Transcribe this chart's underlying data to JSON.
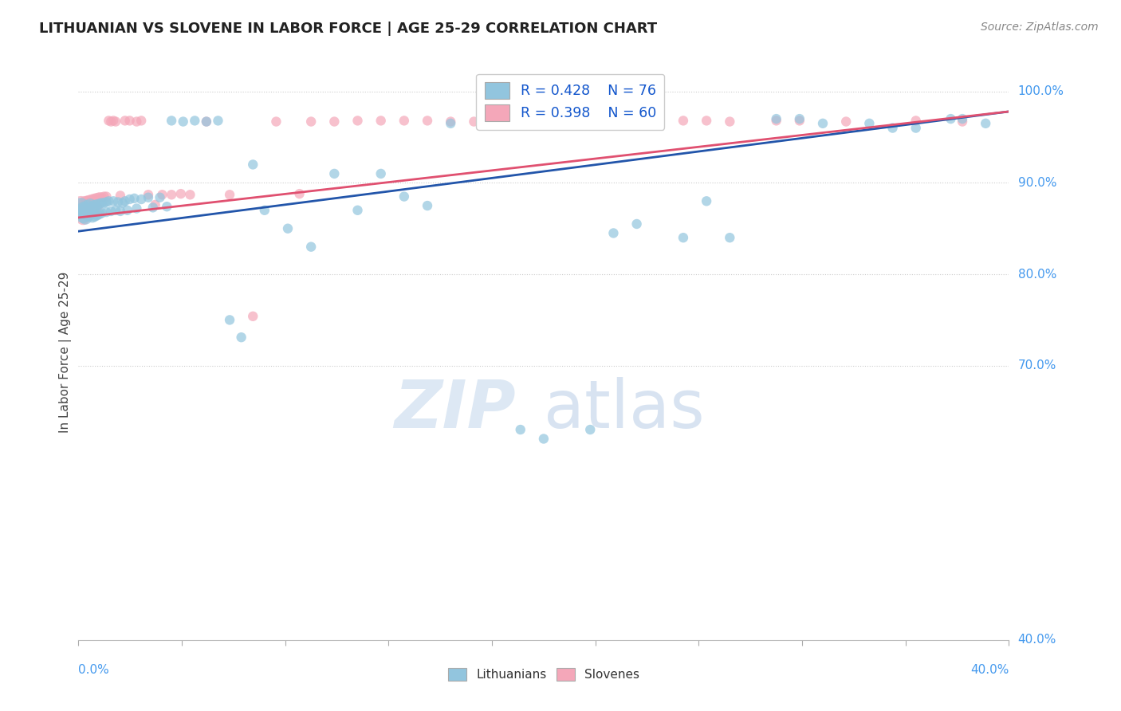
{
  "title": "LITHUANIAN VS SLOVENE IN LABOR FORCE | AGE 25-29 CORRELATION CHART",
  "source": "Source: ZipAtlas.com",
  "ylabel": "In Labor Force | Age 25-29",
  "xmin": 0.0,
  "xmax": 0.4,
  "ymin": 0.4,
  "ymax": 1.03,
  "legend_blue_r": "R = 0.428",
  "legend_blue_n": "N = 76",
  "legend_pink_r": "R = 0.398",
  "legend_pink_n": "N = 60",
  "blue_color": "#92C5DE",
  "pink_color": "#F4A7B9",
  "blue_line_color": "#2255AA",
  "pink_line_color": "#E05070",
  "watermark_zip": "ZIP",
  "watermark_atlas": "atlas",
  "blue_scatter_x": [
    0.001,
    0.001,
    0.002,
    0.002,
    0.003,
    0.003,
    0.004,
    0.004,
    0.005,
    0.005,
    0.006,
    0.006,
    0.007,
    0.007,
    0.008,
    0.008,
    0.009,
    0.009,
    0.01,
    0.01,
    0.011,
    0.012,
    0.012,
    0.013,
    0.014,
    0.015,
    0.016,
    0.017,
    0.018,
    0.019,
    0.02,
    0.021,
    0.022,
    0.024,
    0.025,
    0.027,
    0.03,
    0.032,
    0.035,
    0.038,
    0.04,
    0.045,
    0.05,
    0.055,
    0.06,
    0.065,
    0.07,
    0.075,
    0.08,
    0.09,
    0.1,
    0.11,
    0.12,
    0.13,
    0.14,
    0.15,
    0.16,
    0.18,
    0.2,
    0.22,
    0.25,
    0.27,
    0.3,
    0.32,
    0.35,
    0.375,
    0.39,
    0.26,
    0.28,
    0.31,
    0.34,
    0.36,
    0.38,
    0.19,
    0.23,
    0.24
  ],
  "blue_scatter_y": [
    0.875,
    0.868,
    0.871,
    0.864,
    0.872,
    0.862,
    0.874,
    0.865,
    0.876,
    0.866,
    0.873,
    0.863,
    0.875,
    0.864,
    0.876,
    0.865,
    0.877,
    0.866,
    0.878,
    0.867,
    0.878,
    0.879,
    0.868,
    0.88,
    0.869,
    0.88,
    0.87,
    0.879,
    0.869,
    0.878,
    0.88,
    0.87,
    0.882,
    0.883,
    0.872,
    0.882,
    0.884,
    0.873,
    0.884,
    0.874,
    0.968,
    0.967,
    0.968,
    0.967,
    0.968,
    0.75,
    0.731,
    0.92,
    0.87,
    0.85,
    0.83,
    0.91,
    0.87,
    0.91,
    0.885,
    0.875,
    0.965,
    0.965,
    0.62,
    0.63,
    1.0,
    0.88,
    0.97,
    0.965,
    0.96,
    0.97,
    0.965,
    0.84,
    0.84,
    0.97,
    0.965,
    0.96,
    0.97,
    0.63,
    0.845,
    0.855
  ],
  "blue_scatter_size": [
    200,
    200,
    180,
    180,
    160,
    160,
    140,
    140,
    130,
    130,
    120,
    120,
    110,
    110,
    100,
    100,
    90,
    90,
    85,
    85,
    80,
    80,
    80,
    80,
    80,
    80,
    80,
    80,
    80,
    80,
    80,
    80,
    80,
    80,
    80,
    80,
    80,
    80,
    80,
    80,
    80,
    80,
    80,
    80,
    80,
    80,
    80,
    80,
    80,
    80,
    80,
    80,
    80,
    80,
    80,
    80,
    80,
    80,
    80,
    80,
    80,
    80,
    80,
    80,
    80,
    80,
    80,
    80,
    80,
    80,
    80,
    80,
    80,
    80,
    80,
    80
  ],
  "pink_scatter_x": [
    0.001,
    0.002,
    0.002,
    0.003,
    0.003,
    0.004,
    0.004,
    0.005,
    0.005,
    0.006,
    0.006,
    0.007,
    0.007,
    0.008,
    0.008,
    0.009,
    0.01,
    0.011,
    0.012,
    0.013,
    0.014,
    0.015,
    0.016,
    0.018,
    0.02,
    0.022,
    0.025,
    0.027,
    0.03,
    0.033,
    0.036,
    0.04,
    0.044,
    0.048,
    0.055,
    0.065,
    0.075,
    0.085,
    0.095,
    0.11,
    0.12,
    0.13,
    0.15,
    0.17,
    0.19,
    0.21,
    0.24,
    0.27,
    0.3,
    0.33,
    0.36,
    0.38,
    0.1,
    0.14,
    0.16,
    0.18,
    0.22,
    0.26,
    0.28,
    0.31
  ],
  "pink_scatter_y": [
    0.877,
    0.87,
    0.862,
    0.878,
    0.868,
    0.879,
    0.869,
    0.88,
    0.87,
    0.881,
    0.871,
    0.882,
    0.872,
    0.883,
    0.873,
    0.884,
    0.884,
    0.885,
    0.885,
    0.968,
    0.967,
    0.968,
    0.967,
    0.886,
    0.968,
    0.968,
    0.967,
    0.968,
    0.887,
    0.876,
    0.887,
    0.887,
    0.888,
    0.887,
    0.967,
    0.887,
    0.754,
    0.967,
    0.888,
    0.967,
    0.968,
    0.968,
    0.968,
    0.967,
    0.968,
    0.968,
    0.967,
    0.968,
    0.968,
    0.967,
    0.968,
    0.967,
    0.967,
    0.968,
    0.967,
    0.968,
    0.967,
    0.968,
    0.967,
    0.968
  ],
  "pink_scatter_size": [
    200,
    180,
    180,
    160,
    160,
    140,
    140,
    130,
    130,
    120,
    120,
    110,
    110,
    100,
    100,
    90,
    85,
    80,
    80,
    80,
    80,
    80,
    80,
    80,
    80,
    80,
    80,
    80,
    80,
    80,
    80,
    80,
    80,
    80,
    80,
    80,
    80,
    80,
    80,
    80,
    80,
    80,
    80,
    80,
    80,
    80,
    80,
    80,
    80,
    80,
    80,
    80,
    80,
    80,
    80,
    80,
    80,
    80,
    80,
    80
  ],
  "blue_line_x": [
    0.0,
    0.4
  ],
  "blue_line_y": [
    0.847,
    0.978
  ],
  "pink_line_x": [
    0.0,
    0.4
  ],
  "pink_line_y": [
    0.862,
    0.978
  ]
}
